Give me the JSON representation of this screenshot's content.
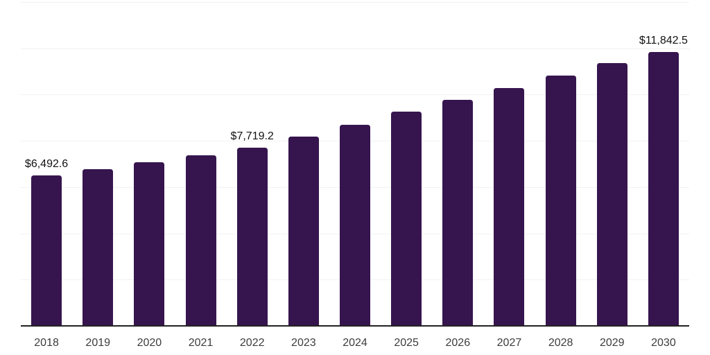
{
  "chart_data": {
    "type": "bar",
    "categories": [
      "2018",
      "2019",
      "2020",
      "2021",
      "2022",
      "2023",
      "2024",
      "2025",
      "2026",
      "2027",
      "2028",
      "2029",
      "2030"
    ],
    "values": [
      6492.6,
      6780,
      7080,
      7380,
      7719.2,
      8190,
      8700,
      9270,
      9780,
      10290,
      10830,
      11370,
      11842.5
    ],
    "data_labels": {
      "2018": "$6,492.6",
      "2022": "$7,719.2",
      "2030": "$11,842.5"
    },
    "ylim": [
      0,
      14000
    ],
    "gridline_step": 2000,
    "grid": "horizontal",
    "legend_position": "none",
    "colors": {
      "bar": "#36154e",
      "gridline": "#f2f2f2",
      "axis_line": "#222222",
      "x_tick_label": "#3c3c3c",
      "data_label": "#111111",
      "background": "#ffffff"
    }
  }
}
